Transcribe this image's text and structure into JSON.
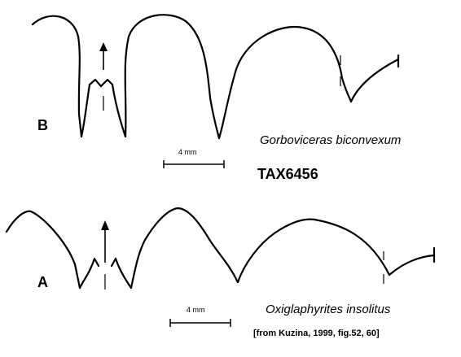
{
  "panel_b": {
    "letter": "B",
    "species": "Gorboviceras biconvexum",
    "scale_label": "4 mm"
  },
  "panel_a": {
    "letter": "A",
    "species": "Oxiglaphyrites insolitus",
    "scale_label": "4 mm"
  },
  "taxon_id": "TAX6456",
  "citation": "[from Kuzina, 1999, fig.52, 60]",
  "colors": {
    "line": "#000000",
    "background": "#ffffff"
  }
}
